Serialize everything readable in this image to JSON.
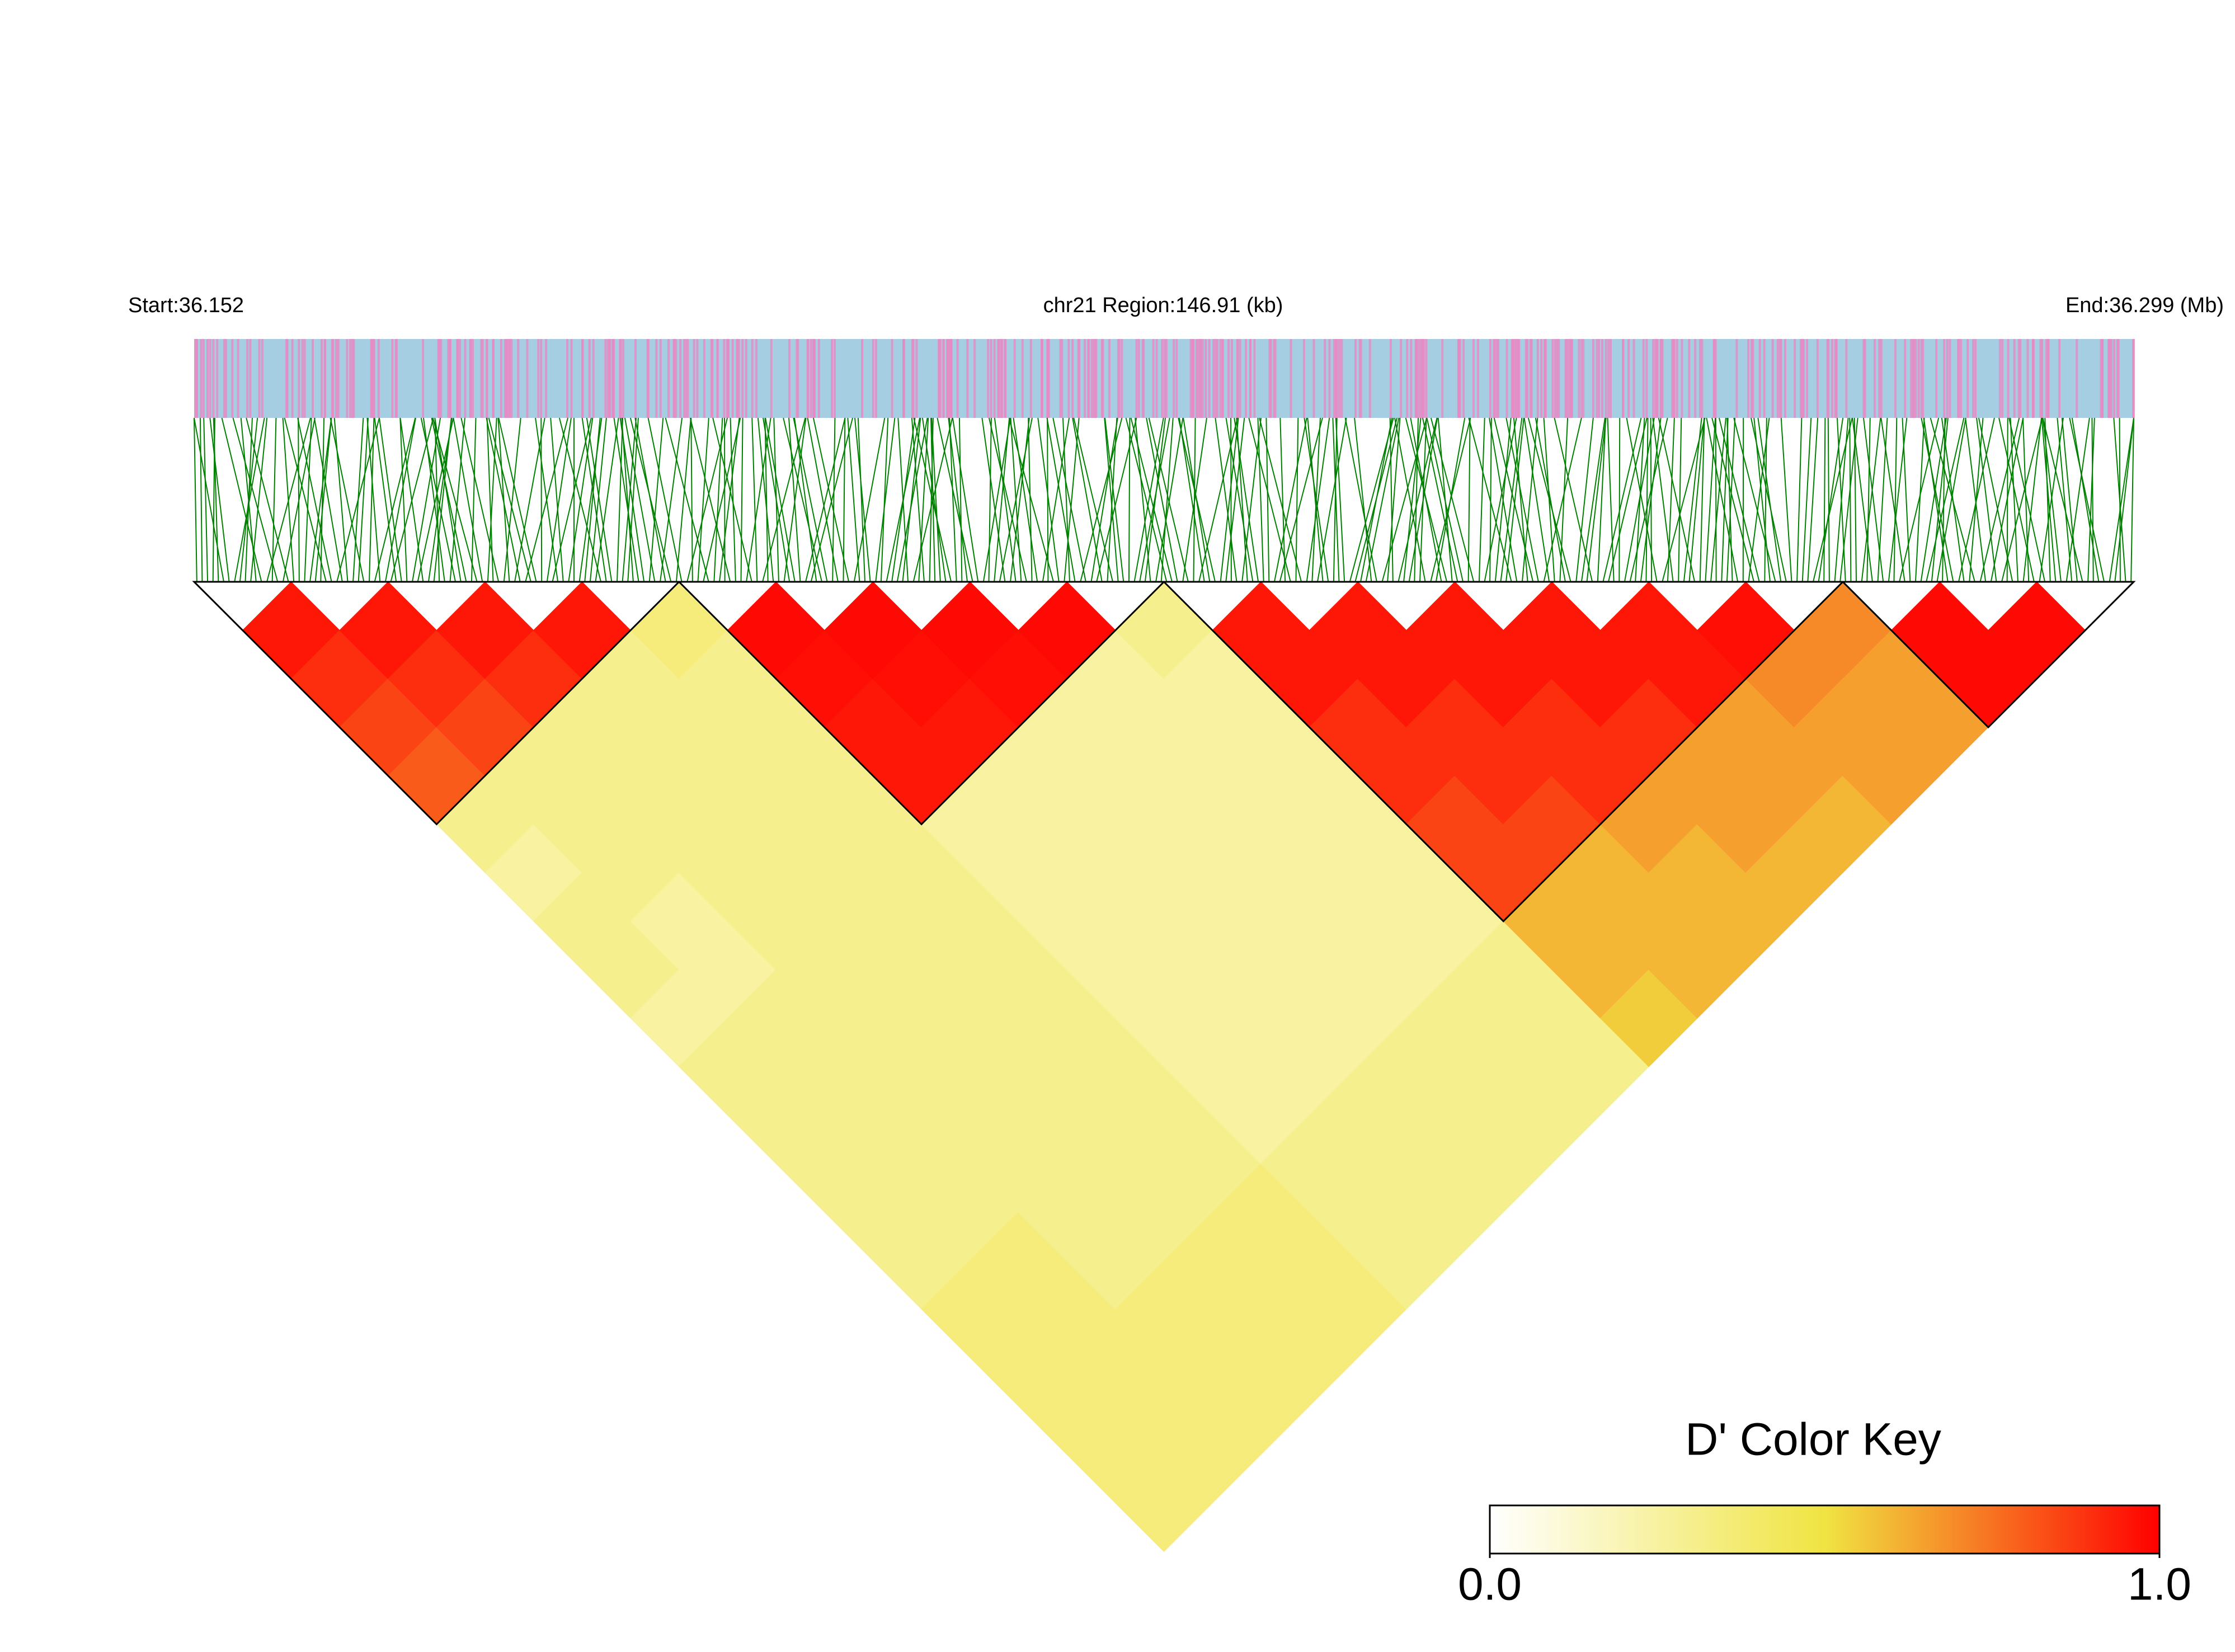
{
  "chart_data": {
    "type": "ld-heatmap",
    "start_label": "Start:36.152",
    "region_label": "chr21 Region:146.91 (kb)",
    "end_label": "End:36.299 (Mb)",
    "dprime": [
      [
        0.95,
        0.9,
        0.85,
        0.8,
        0.3,
        0.25,
        0.3,
        0.3,
        0.25,
        0.3,
        0.3,
        0.3,
        0.3,
        0.3,
        0.35,
        0.35,
        0.35,
        0.35,
        0.35
      ],
      [
        0.95,
        0.9,
        0.85,
        0.3,
        0.3,
        0.3,
        0.25,
        0.25,
        0.3,
        0.3,
        0.3,
        0.3,
        0.3,
        0.35,
        0.35,
        0.35,
        0.35,
        0.35
      ],
      [
        0.95,
        0.9,
        0.3,
        0.3,
        0.3,
        0.3,
        0.3,
        0.3,
        0.3,
        0.3,
        0.3,
        0.3,
        0.3,
        0.3,
        0.35,
        0.35,
        0.35
      ],
      [
        0.95,
        0.3,
        0.3,
        0.3,
        0.3,
        0.3,
        0.3,
        0.3,
        0.3,
        0.3,
        0.3,
        0.3,
        0.3,
        0.35,
        0.35,
        0.35
      ],
      [
        0.35,
        0.3,
        0.3,
        0.3,
        0.3,
        0.3,
        0.3,
        0.3,
        0.3,
        0.3,
        0.3,
        0.3,
        0.35,
        0.35,
        0.35
      ],
      [
        0.98,
        0.97,
        0.95,
        0.95,
        0.25,
        0.25,
        0.25,
        0.25,
        0.25,
        0.25,
        0.25,
        0.3,
        0.3,
        0.3
      ],
      [
        0.98,
        0.97,
        0.95,
        0.25,
        0.25,
        0.25,
        0.25,
        0.25,
        0.25,
        0.25,
        0.3,
        0.3,
        0.3
      ],
      [
        0.98,
        0.97,
        0.25,
        0.25,
        0.25,
        0.25,
        0.25,
        0.25,
        0.25,
        0.3,
        0.3,
        0.3
      ],
      [
        0.98,
        0.25,
        0.25,
        0.25,
        0.25,
        0.25,
        0.25,
        0.25,
        0.3,
        0.3,
        0.3
      ],
      [
        0.3,
        0.25,
        0.25,
        0.25,
        0.25,
        0.25,
        0.25,
        0.3,
        0.3,
        0.3
      ],
      [
        0.95,
        0.95,
        0.9,
        0.9,
        0.85,
        0.85,
        0.6,
        0.6,
        0.55
      ],
      [
        0.95,
        0.95,
        0.9,
        0.9,
        0.85,
        0.6,
        0.6,
        0.6
      ],
      [
        0.95,
        0.95,
        0.9,
        0.9,
        0.65,
        0.6,
        0.6
      ],
      [
        0.95,
        0.95,
        0.9,
        0.65,
        0.65,
        0.6
      ],
      [
        0.95,
        0.95,
        0.65,
        0.65,
        0.6
      ],
      [
        0.97,
        0.7,
        0.65,
        0.65
      ],
      [
        0.7,
        0.65,
        0.65
      ],
      [
        0.98,
        0.98
      ],
      [
        0.98
      ]
    ],
    "colorbar": {
      "title": "D' Color Key",
      "lim": [
        0,
        1
      ],
      "ticks": [
        {
          "value": 0,
          "label": "0.0"
        },
        {
          "value": 1,
          "label": "1.0"
        }
      ],
      "colors": [
        "#ffffff",
        "#f0e442",
        "#ff0000"
      ]
    },
    "track_color": "#a6cee3",
    "snp_color": "#e78ac3",
    "connector_color": "#008000"
  }
}
